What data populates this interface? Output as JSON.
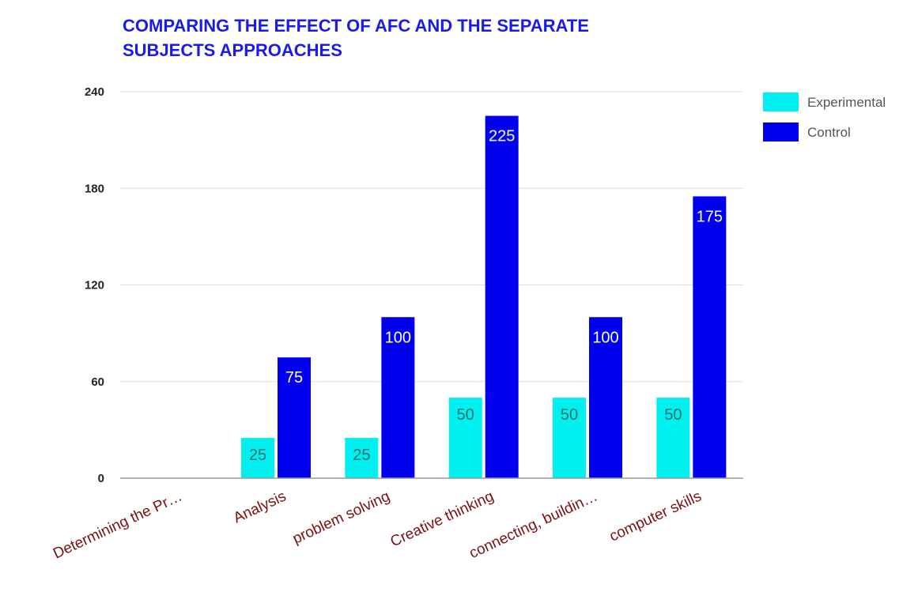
{
  "chart_data": {
    "type": "bar",
    "title_lines": [
      "COMPARING THE EFFECT OF AFC AND THE SEPARATE",
      "SUBJECTS APPROACHES"
    ],
    "categories": [
      "Determining the Pr…",
      "Analysis",
      "problem solving",
      "Creative thinking",
      "connecting, buildin…",
      "computer skills"
    ],
    "series": [
      {
        "name": "Experimental",
        "values": [
          0,
          25,
          25,
          50,
          50,
          50
        ],
        "color": "#00f0f0"
      },
      {
        "name": "Control",
        "values": [
          0,
          75,
          100,
          225,
          100,
          175
        ],
        "color": "#0000ee"
      }
    ],
    "data_labels": [
      [
        "",
        "25",
        "25",
        "50",
        "50",
        "50"
      ],
      [
        "",
        "75",
        "100",
        "225",
        "100",
        "175"
      ]
    ],
    "yticks": [
      "0",
      "60",
      "120",
      "180",
      "240"
    ],
    "ylim": [
      0,
      240
    ],
    "grid": true,
    "legend": "right",
    "colors": {
      "title": "#1a1aee",
      "tick_label": "#7a1010",
      "grid": "#dddddd",
      "axis": "#999999"
    }
  }
}
